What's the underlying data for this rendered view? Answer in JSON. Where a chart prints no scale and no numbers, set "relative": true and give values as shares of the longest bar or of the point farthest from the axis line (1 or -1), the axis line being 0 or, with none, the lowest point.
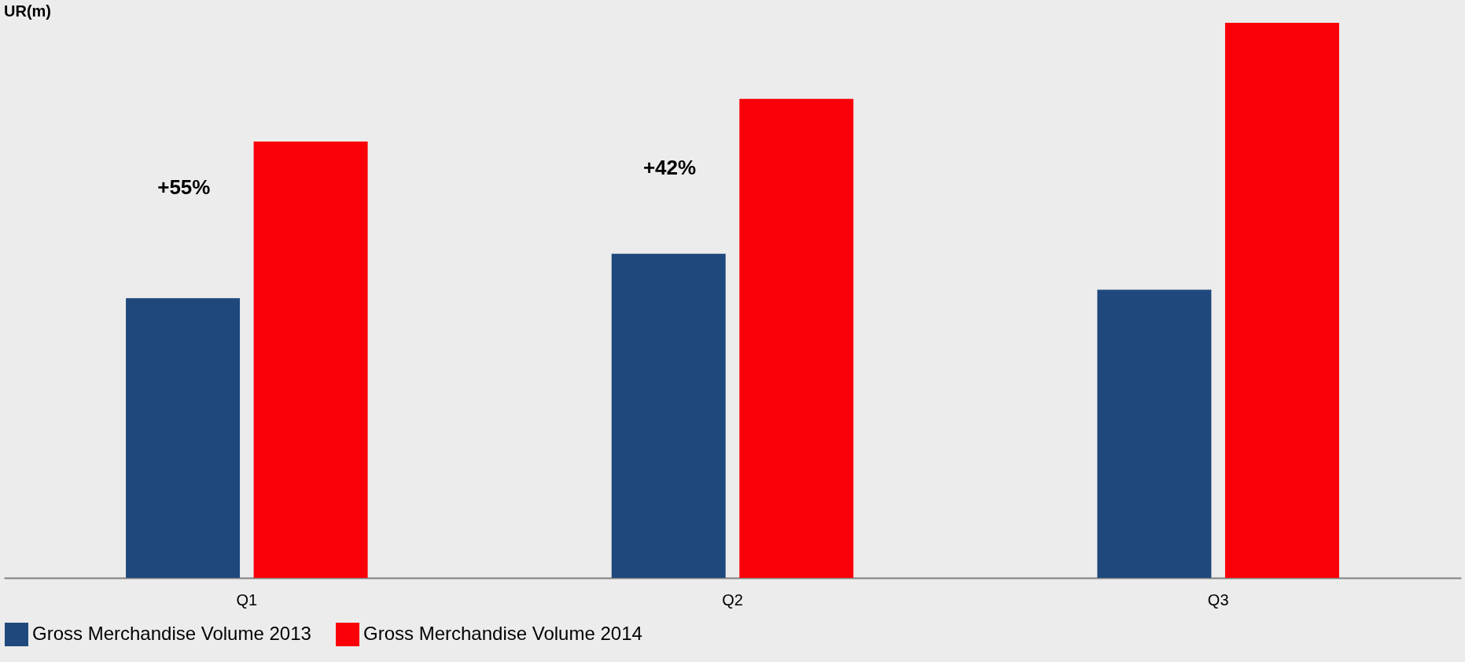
{
  "chart_data": {
    "type": "bar",
    "title": "UR(m)",
    "relative": true,
    "categories": [
      "Q1",
      "Q2",
      "Q3"
    ],
    "series": [
      {
        "name": "Gross Merchandise Volume 2013",
        "color": "#1f497d",
        "values": [
          0.504,
          0.584,
          0.519
        ]
      },
      {
        "name": "Gross Merchandise Volume 2014",
        "color": "#fa0008",
        "values": [
          0.786,
          0.863,
          1
        ]
      }
    ],
    "annotations": [
      "+55%",
      "+42%"
    ],
    "legend": "bottom"
  }
}
